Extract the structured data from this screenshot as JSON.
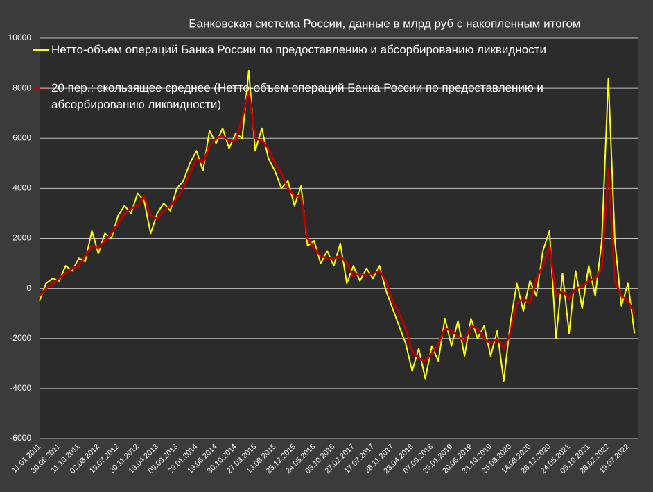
{
  "chart_data": {
    "type": "line",
    "title": "Банковская система России, данные в млрд руб с накопленным итогом",
    "categories": [
      "11.01.2011",
      null,
      null,
      "30.05.2011",
      null,
      null,
      "11.10.2011",
      null,
      null,
      "02.03.2012",
      null,
      null,
      "19.07.2012",
      null,
      null,
      "30.11.2012",
      null,
      null,
      "19.04.2013",
      null,
      null,
      "09.09.2013",
      null,
      null,
      "29.01.2014",
      null,
      null,
      "19.06.2014",
      null,
      null,
      "30.10.2014",
      null,
      null,
      "27.03.2015",
      null,
      null,
      "13.08.2015",
      null,
      null,
      "25.12.2015",
      null,
      null,
      "24.05.2016",
      null,
      null,
      "05.10.2016",
      null,
      null,
      "27.02.2017",
      null,
      null,
      "17.07.2017",
      null,
      null,
      "28.11.2017",
      null,
      null,
      "23.04.2018",
      null,
      null,
      "07.09.2018",
      null,
      null,
      "29.01.2019",
      null,
      null,
      "20.06.2019",
      null,
      null,
      "31.10.2019",
      null,
      null,
      "25.03.2020",
      null,
      null,
      "14.08.2020",
      null,
      null,
      "28.12.2020",
      null,
      null,
      "24.05.2021",
      null,
      null,
      "05.10.2021",
      null,
      null,
      "28.02.2022",
      null,
      null,
      "19.07.2022",
      null
    ],
    "series": [
      {
        "name": "Нетто-объем операций Банка России по предоставлению и абсорбированию ликвидности",
        "color": "#ffff00",
        "values": [
          -500,
          200,
          400,
          300,
          900,
          700,
          1200,
          1100,
          2300,
          1400,
          2200,
          2000,
          2900,
          3300,
          3000,
          3800,
          3500,
          2200,
          3000,
          3400,
          3100,
          4000,
          4300,
          5000,
          5500,
          4700,
          6300,
          5800,
          6400,
          5600,
          6200,
          6000,
          8700,
          5500,
          6400,
          5200,
          4700,
          4000,
          4300,
          3300,
          4100,
          1700,
          1900,
          1000,
          1500,
          900,
          1800,
          200,
          900,
          300,
          800,
          400,
          900,
          -100,
          -800,
          -1500,
          -2200,
          -3300,
          -2400,
          -3600,
          -2300,
          -2900,
          -1200,
          -2300,
          -1300,
          -2700,
          -1200,
          -2000,
          -1500,
          -2700,
          -1700,
          -3700,
          -1400,
          200,
          -900,
          300,
          -300,
          1500,
          2300,
          -2000,
          600,
          -1800,
          700,
          -800,
          900,
          -300,
          1900,
          8400,
          1900,
          -700,
          200,
          -1800
        ]
      },
      {
        "name": "20 пер.: скользящее среднее (Нетто-объем операций Банка России по предоставлению и абсорбированию ликвидности)",
        "color": "#c00000",
        "values": [
          -300,
          0,
          200,
          400,
          600,
          800,
          900,
          1300,
          1700,
          1600,
          1900,
          2200,
          2600,
          3000,
          3200,
          3300,
          3700,
          2900,
          2800,
          3100,
          3300,
          3600,
          4000,
          4600,
          5200,
          5000,
          5700,
          6000,
          6100,
          5900,
          5900,
          6800,
          7900,
          6000,
          5900,
          5600,
          5000,
          4600,
          4000,
          3700,
          3700,
          2000,
          1600,
          1300,
          1200,
          1200,
          1300,
          1000,
          500,
          600,
          500,
          600,
          700,
          300,
          -500,
          -1000,
          -1600,
          -2500,
          -2800,
          -2900,
          -2600,
          -2200,
          -1600,
          -1700,
          -1900,
          -2100,
          -1500,
          -1600,
          -2000,
          -2200,
          -2000,
          -2400,
          -1800,
          -600,
          -400,
          -600,
          400,
          900,
          1700,
          -300,
          -100,
          -400,
          0,
          100,
          300,
          400,
          800,
          4800,
          300,
          -300,
          -500,
          -1000
        ]
      }
    ],
    "ylim": [
      -6000,
      10000
    ],
    "yticks": [
      -6000,
      -4000,
      -2000,
      0,
      2000,
      4000,
      6000,
      8000,
      10000
    ],
    "grid": true
  }
}
